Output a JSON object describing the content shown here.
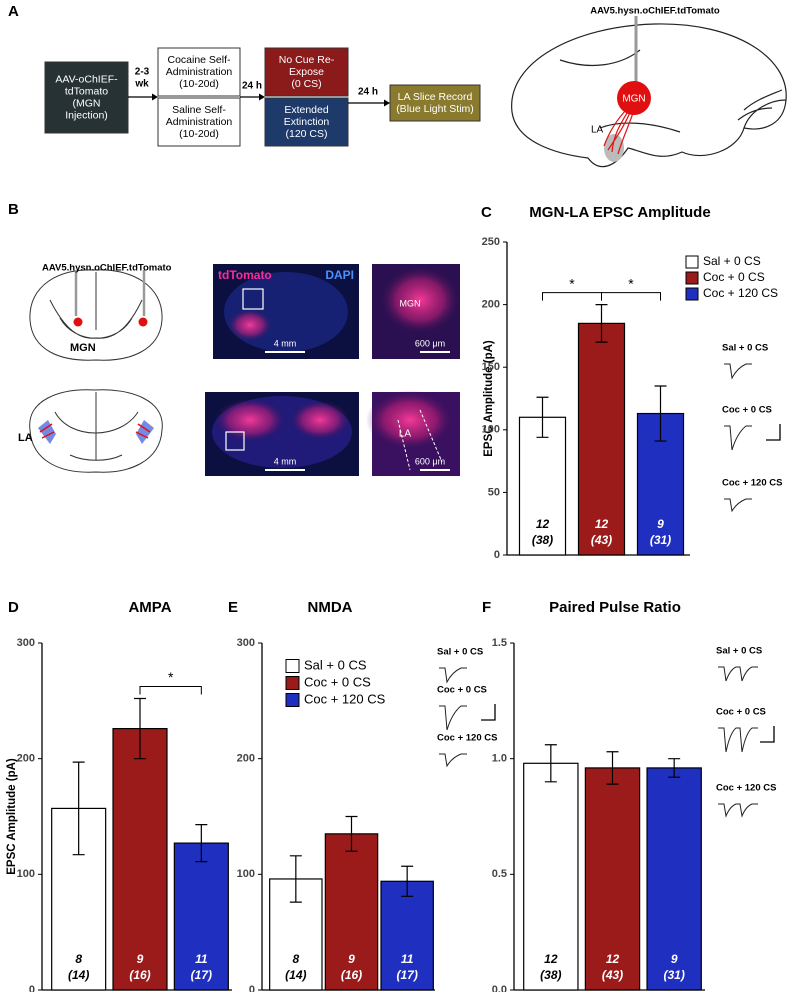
{
  "panel_a": {
    "label": "A",
    "boxes": [
      {
        "lines": [
          "AAV-oChIEF-",
          "tdTomato",
          "(MGN",
          "Injection)"
        ]
      },
      {
        "lines": [
          "Cocaine Self-",
          "Administration",
          "(10-20d)"
        ]
      },
      {
        "lines": [
          "Saline Self-",
          "Administration",
          "(10-20d)"
        ]
      },
      {
        "lines": [
          "No Cue Re-",
          "Expose",
          "(0 CS)"
        ]
      },
      {
        "lines": [
          "Extended",
          "Extinction",
          "(120 CS)"
        ]
      },
      {
        "lines": [
          "LA Slice Record",
          "(Blue Light Stim)"
        ]
      }
    ],
    "intervals": [
      [
        "2-3",
        "wk"
      ],
      [
        "24 h"
      ],
      [
        "24 h"
      ]
    ],
    "brain_labels": {
      "virus": "AAV5.hysn.oChIEF.tdTomato",
      "mgn": "MGN",
      "la": "LA"
    }
  },
  "panel_b": {
    "label": "B",
    "virus": "AAV5.hysn.oChIEF.tdTomato",
    "mgn": "MGN",
    "la": "LA",
    "stain_1": "tdTomato",
    "stain_2": "DAPI",
    "scale_1": "4 mm",
    "scale_2": "600 μm",
    "inset_1": "MGN",
    "scale_3": "4 mm",
    "scale_4": "600 μm",
    "inset_2": "LA"
  },
  "chart_data": [
    {
      "label": "C",
      "type": "bar",
      "title": "MGN-LA EPSC Amplitude",
      "y_label": "EPSC Amplitude (pA)",
      "ylim": [
        0,
        250
      ],
      "yticks": [
        0,
        50,
        100,
        150,
        200,
        250
      ],
      "values": [
        110,
        185,
        113
      ],
      "errors": [
        16,
        15,
        22
      ],
      "colors": [
        "#ffffff",
        "#9b1b1b",
        "#1f2fbf"
      ],
      "bar_labels": [
        [
          "12",
          "(38)"
        ],
        [
          "12",
          "(43)"
        ],
        [
          "9",
          "(31)"
        ]
      ],
      "significance": [
        {
          "bars": [
            0,
            1
          ],
          "label": "*"
        },
        {
          "bars": [
            1,
            2
          ],
          "label": "*"
        }
      ],
      "legend": [
        "Sal + 0 CS",
        "Coc + 0 CS",
        "Coc + 120 CS"
      ],
      "trace_labels": [
        "Sal + 0 CS",
        "Coc + 0 CS",
        "Coc + 120 CS"
      ]
    },
    {
      "label": "D",
      "type": "bar",
      "title": "AMPA",
      "y_label": "EPSC Amplitude (pA)",
      "ylim": [
        0,
        300
      ],
      "yticks": [
        0,
        100,
        200,
        300
      ],
      "values": [
        157,
        226,
        127
      ],
      "errors": [
        40,
        26,
        16
      ],
      "colors": [
        "#ffffff",
        "#9b1b1b",
        "#1f2fbf"
      ],
      "bar_labels": [
        [
          "8",
          "(14)"
        ],
        [
          "9",
          "(16)"
        ],
        [
          "11",
          "(17)"
        ]
      ],
      "significance": [
        {
          "bars": [
            1,
            2
          ],
          "label": "*"
        }
      ]
    },
    {
      "label": "E",
      "type": "bar",
      "title": "NMDA",
      "ylim": [
        0,
        300
      ],
      "yticks": [
        0,
        100,
        200,
        300
      ],
      "values": [
        96,
        135,
        94
      ],
      "errors": [
        20,
        15,
        13
      ],
      "colors": [
        "#ffffff",
        "#9b1b1b",
        "#1f2fbf"
      ],
      "bar_labels": [
        [
          "8",
          "(14)"
        ],
        [
          "9",
          "(16)"
        ],
        [
          "11",
          "(17)"
        ]
      ],
      "legend": [
        "Sal + 0 CS",
        "Coc + 0 CS",
        "Coc + 120 CS"
      ],
      "trace_labels": [
        "Sal + 0 CS",
        "Coc + 0 CS",
        "Coc + 120 CS"
      ]
    },
    {
      "label": "F",
      "type": "bar",
      "title": "Paired Pulse Ratio",
      "ylim": [
        0,
        1.5
      ],
      "yticks": [
        {
          "value": 0,
          "label": "0.0"
        },
        0.5,
        {
          "value": 1,
          "label": "1.0"
        },
        1.5
      ],
      "values": [
        0.98,
        0.96,
        0.96
      ],
      "errors": [
        0.08,
        0.07,
        0.04
      ],
      "colors": [
        "#ffffff",
        "#9b1b1b",
        "#1f2fbf"
      ],
      "bar_labels": [
        [
          "12",
          "(38)"
        ],
        [
          "12",
          "(43)"
        ],
        [
          "9",
          "(31)"
        ]
      ],
      "trace_labels": [
        "Sal + 0 CS",
        "Coc + 0 CS",
        "Coc + 120 CS"
      ]
    }
  ]
}
